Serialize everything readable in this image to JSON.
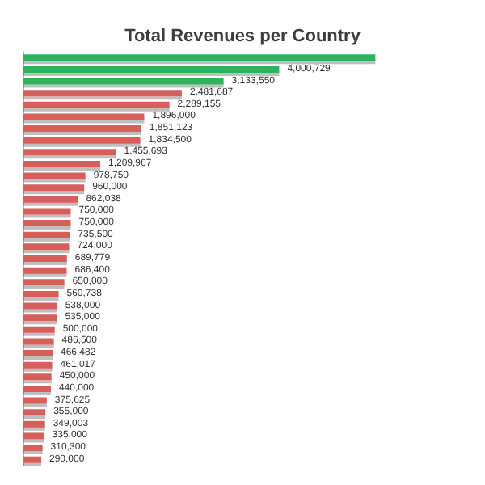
{
  "chart_data": {
    "type": "bar",
    "orientation": "horizontal",
    "title": "Total Revenues per Country",
    "categories": [
      null,
      null,
      null,
      null,
      null,
      null,
      null,
      null,
      null,
      null,
      null,
      null,
      null,
      null,
      null,
      null,
      null,
      null,
      null,
      null,
      null,
      null,
      null,
      null,
      null,
      null,
      null,
      null,
      null,
      null,
      null,
      null,
      null,
      null,
      null
    ],
    "values": [
      5500000,
      4000729,
      3133550,
      2481687,
      2289155,
      1896000,
      1851123,
      1834500,
      1455693,
      1209967,
      978750,
      960000,
      862038,
      750000,
      750000,
      735500,
      724000,
      689779,
      686400,
      650000,
      560738,
      538000,
      535000,
      500000,
      486500,
      466482,
      461017,
      450000,
      440000,
      375625,
      355000,
      349003,
      335000,
      310300,
      290000
    ],
    "value_labels": [
      null,
      "4,000,729",
      "3,133,550",
      "2,481,687",
      "2,289,155",
      "1,896,000",
      "1,851,123",
      "1,834,500",
      "1,455,693",
      "1,209,967",
      "978,750",
      "960,000",
      "862,038",
      "750,000",
      "750,000",
      "735,500",
      "724,000",
      "689,779",
      "686,400",
      "650,000",
      "560,738",
      "538,000",
      "535,000",
      "500,000",
      "486,500",
      "466,482",
      "461,017",
      "450,000",
      "440,000",
      "375,625",
      "355,000",
      "349,003",
      "335,000",
      "310,300",
      "290,000"
    ],
    "colors": [
      "#2db35d",
      "#2db35d",
      "#2db35d",
      "#d65f5b",
      "#d65f5b",
      "#d65f5b",
      "#d65f5b",
      "#d65f5b",
      "#d65f5b",
      "#d65f5b",
      "#d65f5b",
      "#d65f5b",
      "#d65f5b",
      "#d65f5b",
      "#d65f5b",
      "#d65f5b",
      "#d65f5b",
      "#d65f5b",
      "#d65f5b",
      "#d65f5b",
      "#d65f5b",
      "#d65f5b",
      "#d65f5b",
      "#d65f5b",
      "#d65f5b",
      "#d65f5b",
      "#d65f5b",
      "#d65f5b",
      "#d65f5b",
      "#d65f5b",
      "#d65f5b",
      "#d65f5b",
      "#d65f5b",
      "#d65f5b",
      "#d65f5b"
    ]
  }
}
